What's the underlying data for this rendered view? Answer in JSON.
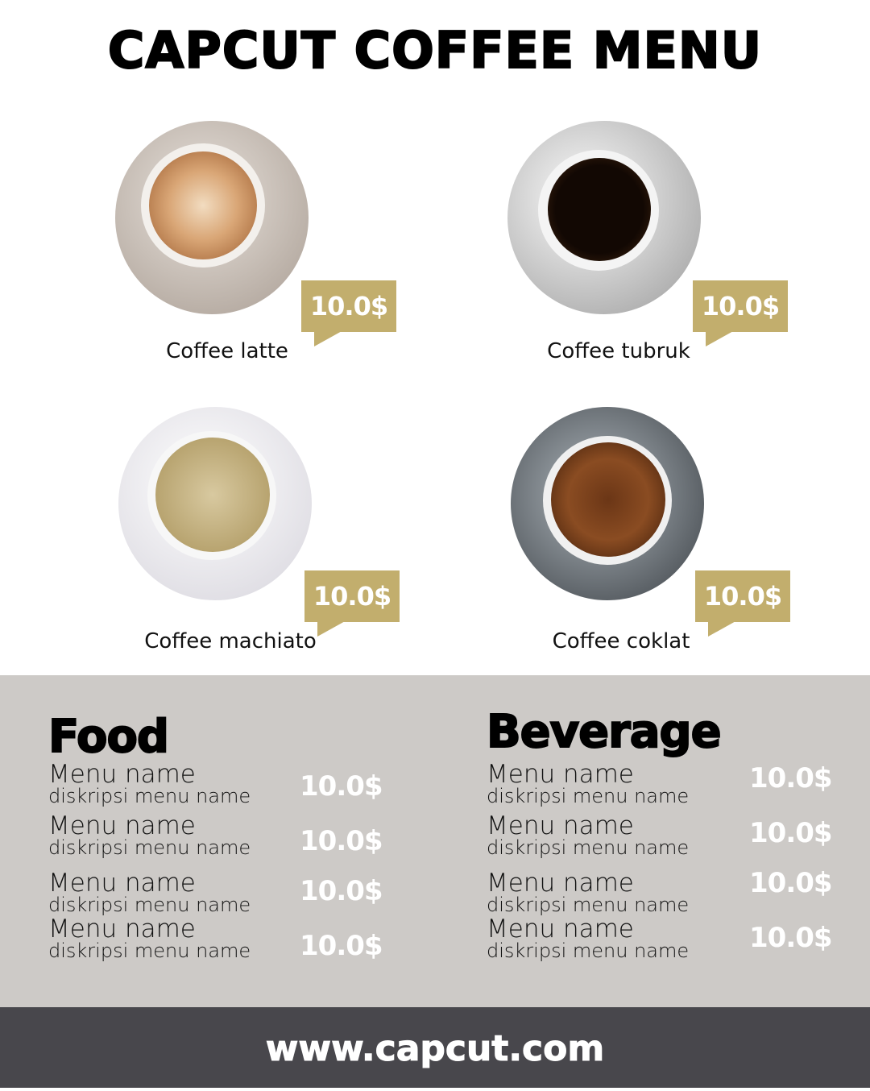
{
  "title": "CAPCUT COFFEE MENU",
  "colors": {
    "accent": "#C2AE6D",
    "panel": "#CDCAC7",
    "footer": "#48474C"
  },
  "coffees": [
    {
      "name": "Coffee latte",
      "price": "10.0$"
    },
    {
      "name": "Coffee tubruk",
      "price": "10.0$"
    },
    {
      "name": "Coffee machiato",
      "price": "10.0$"
    },
    {
      "name": "Coffee coklat",
      "price": "10.0$"
    }
  ],
  "food": {
    "title": "Food",
    "items": [
      {
        "name": "Menu name",
        "desc": "diskripsi menu name",
        "price": "10.0$"
      },
      {
        "name": "Menu name",
        "desc": "diskripsi menu name",
        "price": "10.0$"
      },
      {
        "name": "Menu name",
        "desc": "diskripsi menu name",
        "price": "10.0$"
      },
      {
        "name": "Menu name",
        "desc": "diskripsi menu name",
        "price": "10.0$"
      }
    ]
  },
  "beverage": {
    "title": "Beverage",
    "items": [
      {
        "name": "Menu name",
        "desc": "diskripsi menu name",
        "price": "10.0$"
      },
      {
        "name": "Menu name",
        "desc": "diskripsi menu name",
        "price": "10.0$"
      },
      {
        "name": "Menu name",
        "desc": "diskripsi menu name",
        "price": "10.0$"
      },
      {
        "name": "Menu name",
        "desc": "diskripsi menu name",
        "price": "10.0$"
      }
    ]
  },
  "footer": "www.capcut.com"
}
